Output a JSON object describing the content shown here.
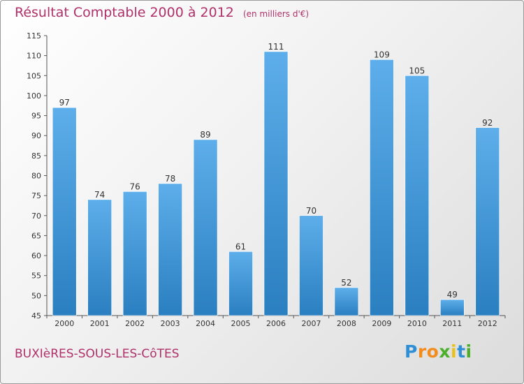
{
  "title": "Résultat Comptable 2000 à 2012",
  "unit_note": "(en milliers d'€)",
  "commune": "BUXIèRES-SOUS-LES-CôTES",
  "logo": {
    "letters": [
      "P",
      "r",
      "o",
      "x",
      "i",
      "t",
      "i"
    ],
    "colors": [
      "#2e8fd6",
      "#f28c1e",
      "#f28c1e",
      "#4caf2a",
      "#e8c21a",
      "#2e8fd6",
      "#4caf2a"
    ]
  },
  "colors": {
    "bar_light": "#5daeea",
    "bar_dark": "#2a7fc0",
    "title": "#b0306a"
  },
  "chart_data": {
    "type": "bar",
    "categories": [
      "2000",
      "2001",
      "2002",
      "2003",
      "2004",
      "2005",
      "2006",
      "2007",
      "2008",
      "2009",
      "2010",
      "2011",
      "2012"
    ],
    "values": [
      97,
      74,
      76,
      78,
      89,
      61,
      111,
      70,
      52,
      109,
      105,
      49,
      92
    ],
    "ylim": [
      45,
      115
    ],
    "yticks": [
      45,
      50,
      55,
      60,
      65,
      70,
      75,
      80,
      85,
      90,
      95,
      100,
      105,
      110,
      115
    ],
    "grid": false
  }
}
